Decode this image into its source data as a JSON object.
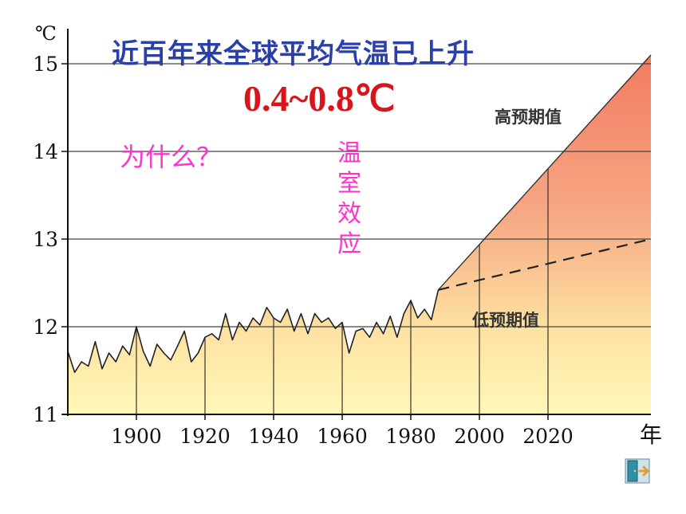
{
  "slide": {
    "title": "近百年来全球平均气温已上升",
    "subtitle": "0.4~0.8℃",
    "question": "为什么？",
    "vertical_text": [
      "温",
      "室",
      "效",
      "应"
    ]
  },
  "chart_data": {
    "type": "line",
    "xlabel": "年",
    "ylabel": "℃",
    "xlim": [
      1880,
      2050
    ],
    "ylim": [
      11,
      15.4
    ],
    "x_ticks": [
      1900,
      1920,
      1940,
      1960,
      1980,
      2000,
      2020
    ],
    "y_ticks": [
      11,
      12,
      13,
      14,
      15
    ],
    "grid": "horizontal",
    "series": [
      {
        "name": "",
        "x": [
          1880,
          1882,
          1884,
          1886,
          1888,
          1890,
          1892,
          1894,
          1896,
          1898,
          1900,
          1902,
          1904,
          1906,
          1908,
          1910,
          1912,
          1914,
          1916,
          1918,
          1920,
          1922,
          1924,
          1926,
          1928,
          1930,
          1932,
          1934,
          1936,
          1938,
          1940,
          1942,
          1944,
          1946,
          1948,
          1950,
          1952,
          1954,
          1956,
          1958,
          1960,
          1962,
          1964,
          1966,
          1968,
          1970,
          1972,
          1974,
          1976,
          1978,
          1980,
          1982,
          1984,
          1986,
          1988
        ],
        "values": [
          11.72,
          11.48,
          11.6,
          11.55,
          11.83,
          11.52,
          11.7,
          11.6,
          11.78,
          11.68,
          12.0,
          11.72,
          11.55,
          11.8,
          11.7,
          11.62,
          11.78,
          11.95,
          11.6,
          11.7,
          11.88,
          11.92,
          11.85,
          12.15,
          11.85,
          12.05,
          11.95,
          12.1,
          12.02,
          12.22,
          12.1,
          12.05,
          12.2,
          11.95,
          12.15,
          11.92,
          12.15,
          12.05,
          12.1,
          11.98,
          12.05,
          11.7,
          11.95,
          11.98,
          11.88,
          12.05,
          11.92,
          12.12,
          11.88,
          12.15,
          12.3,
          12.1,
          12.2,
          12.08,
          12.42
        ]
      },
      {
        "name": "高预期值",
        "x": [
          1988,
          2050
        ],
        "values": [
          12.42,
          15.1
        ]
      },
      {
        "name": "低预期值",
        "x": [
          1988,
          2050
        ],
        "values": [
          12.42,
          13.0
        ]
      }
    ]
  },
  "colors": {
    "title": "#2a3fa8",
    "subtitle": "#d8151b",
    "pink_text": "#ff33cc",
    "fill_top": "#f27a60",
    "fill_bottom": "#fff8a8",
    "line": "#222222"
  },
  "nav": {
    "exit_icon": "exit-door-icon"
  }
}
